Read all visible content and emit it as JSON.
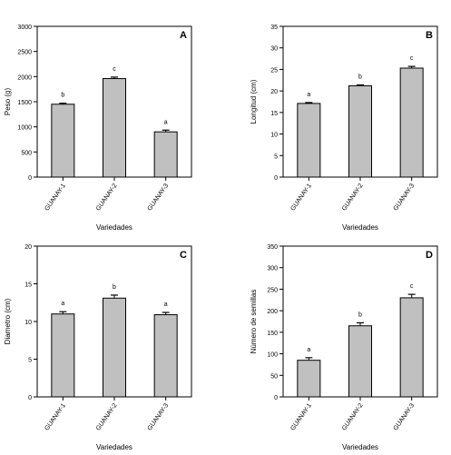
{
  "chart_data": [
    {
      "type": "bar",
      "panel_letter": "A",
      "categories": [
        "GUANAY-1",
        "GUANAY-2",
        "GUANAY-3"
      ],
      "values": [
        1450,
        1960,
        900
      ],
      "errors": [
        20,
        30,
        35
      ],
      "significance_letters": [
        "b",
        "c",
        "a"
      ],
      "ylabel": "Peso (g)",
      "xlabel": "Variedades",
      "ylim": [
        0,
        3000
      ],
      "yticks": [
        "0",
        "500",
        "1000",
        "1500",
        "2000",
        "2500",
        "3000"
      ],
      "bar_color": "#c0c0c0"
    },
    {
      "type": "bar",
      "panel_letter": "B",
      "categories": [
        "GUANAY-1",
        "GUANAY-2",
        "GUANAY-3"
      ],
      "values": [
        17.1,
        21.2,
        25.3
      ],
      "errors": [
        0.2,
        0.2,
        0.4
      ],
      "significance_letters": [
        "a",
        "b",
        "c"
      ],
      "ylabel": "Longitud (cm)",
      "xlabel": "Variedades",
      "ylim": [
        0,
        35
      ],
      "yticks": [
        "0",
        "5",
        "10",
        "15",
        "20",
        "25",
        "30",
        "35"
      ],
      "bar_color": "#c0c0c0"
    },
    {
      "type": "bar",
      "panel_letter": "C",
      "categories": [
        "GUANAY-1",
        "GUANAY-2",
        "GUANAY-3"
      ],
      "values": [
        11.0,
        13.1,
        10.9
      ],
      "errors": [
        0.3,
        0.4,
        0.3
      ],
      "significance_letters": [
        "a",
        "b",
        "a"
      ],
      "ylabel": "Diametro (cm)",
      "xlabel": "Variedades",
      "ylim": [
        0,
        20
      ],
      "yticks": [
        "0",
        "5",
        "10",
        "15",
        "20"
      ],
      "bar_color": "#c0c0c0"
    },
    {
      "type": "bar",
      "panel_letter": "D",
      "categories": [
        "GUANAY-1",
        "GUANAY-2",
        "GUANAY-3"
      ],
      "values": [
        85,
        165,
        230
      ],
      "errors": [
        6,
        7,
        8
      ],
      "significance_letters": [
        "a",
        "b",
        "c"
      ],
      "ylabel": "Número de semillas",
      "xlabel": "Variedades",
      "ylim": [
        0,
        350
      ],
      "yticks": [
        "0",
        "50",
        "100",
        "150",
        "200",
        "250",
        "300",
        "350"
      ],
      "bar_color": "#c0c0c0"
    }
  ]
}
